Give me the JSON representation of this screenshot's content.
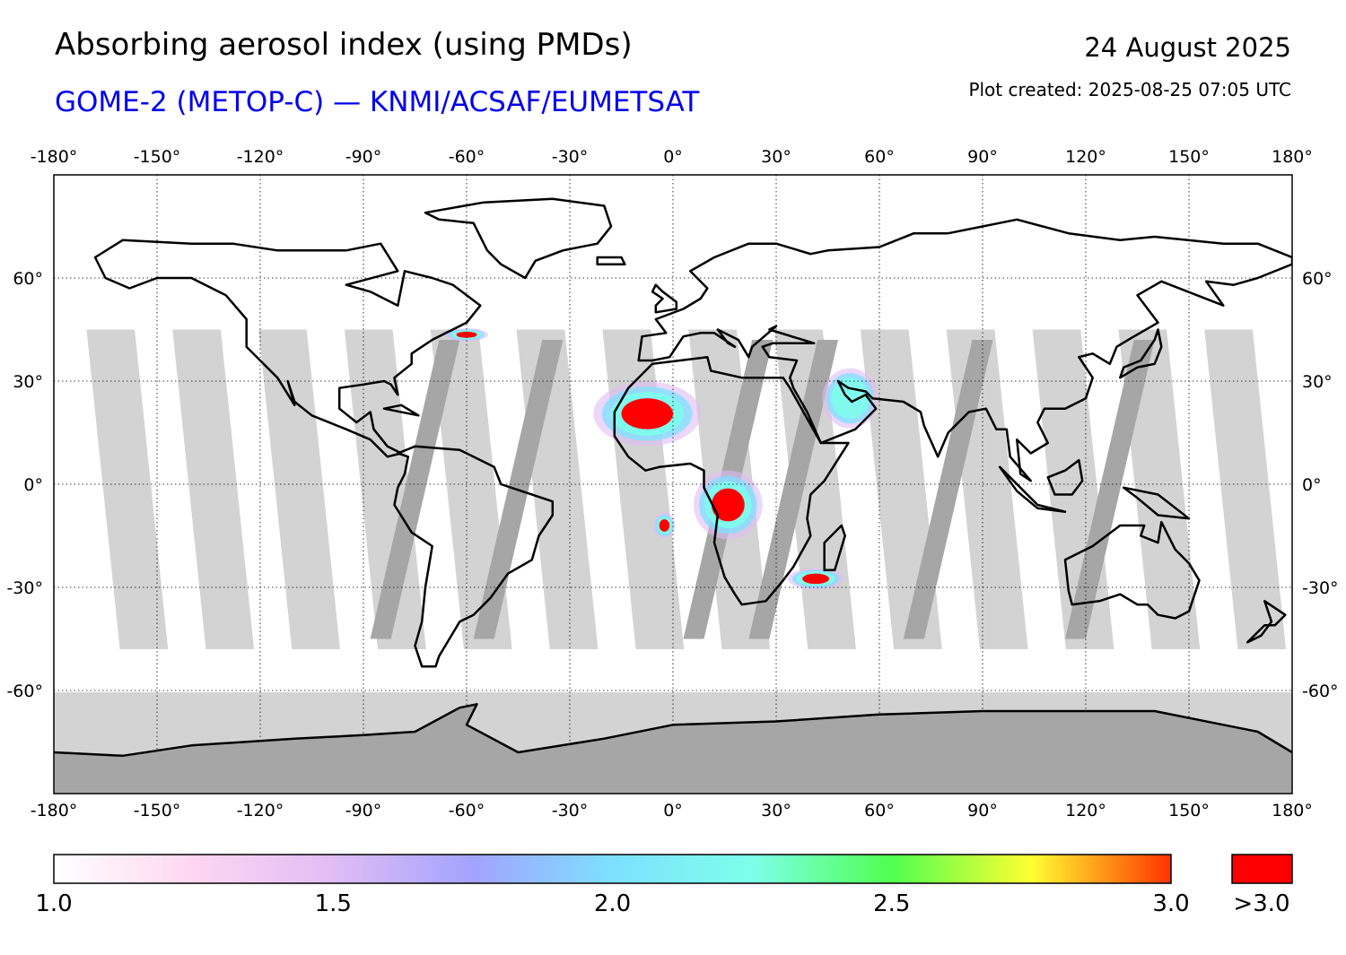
{
  "header": {
    "title": "Absorbing aerosol index (using PMDs)",
    "subtitle": "GOME-2 (METOP-C) — KNMI/ACSAF/EUMETSAT",
    "subtitle_color": "#0000ee",
    "date": "24 August 2025",
    "created": "Plot created: 2025-08-25 07:05 UTC"
  },
  "map": {
    "projection": "equirectangular",
    "lon_range": [
      -180,
      180
    ],
    "lat_range": [
      -90,
      90
    ],
    "lon_ticks": [
      -180,
      -150,
      -120,
      -90,
      -60,
      -30,
      0,
      30,
      60,
      90,
      120,
      150,
      180
    ],
    "lat_ticks": [
      60,
      30,
      0,
      -30,
      -60
    ],
    "lon_tick_labels": [
      "-180°",
      "-150°",
      "-120°",
      "-90°",
      "-60°",
      "-30°",
      "0°",
      "30°",
      "60°",
      "90°",
      "120°",
      "150°",
      "180°"
    ],
    "lat_tick_labels": [
      "60°",
      "30°",
      "0°",
      "-30°",
      "-60°"
    ],
    "grid": "dotted",
    "no_data_color": "#d3d3d3",
    "orbit_gap_color": "#a6a6a6",
    "polar_no_data_lat": -60,
    "orbit_gap_centers_at_equator": [
      -159,
      -134,
      -109,
      -84,
      -59,
      -34,
      -9,
      16,
      41,
      66,
      91,
      116,
      141,
      166
    ],
    "aerosol_plumes": [
      {
        "name": "Southern Africa biomass burning",
        "lon_range": [
          8,
          24
        ],
        "lat_range": [
          -14,
          2
        ],
        "peak_index": 3.0
      },
      {
        "name": "Angola coastal outflow",
        "lon_range": [
          -5,
          0
        ],
        "lat_range": [
          -15,
          -9
        ],
        "peak_index": 3.0
      },
      {
        "name": "Sahara dust",
        "lon_range": [
          -20,
          5
        ],
        "lat_range": [
          13,
          28
        ],
        "peak_index": 3.0
      },
      {
        "name": "Arabian dust",
        "lon_range": [
          45,
          58
        ],
        "lat_range": [
          18,
          32
        ],
        "peak_index": 2.2
      },
      {
        "name": "Madagascar channel",
        "lon_range": [
          35,
          48
        ],
        "lat_range": [
          -30,
          -25
        ],
        "peak_index": 3.0
      },
      {
        "name": "Canada smoke",
        "lon_range": [
          -65,
          -55
        ],
        "lat_range": [
          42,
          45
        ],
        "peak_index": 3.0
      }
    ]
  },
  "colorbar": {
    "min": 1.0,
    "max": 3.0,
    "tick_values": [
      1.0,
      1.5,
      2.0,
      2.5,
      3.0
    ],
    "tick_labels": [
      "1.0",
      "1.5",
      "2.0",
      "2.5",
      "3.0"
    ],
    "overflow_label": ">3.0",
    "overflow_color": "#ff0000",
    "stops": [
      "#ffffff",
      "#ffd6f0",
      "#e0bdf5",
      "#a3a3ff",
      "#7de0ff",
      "#7dffea",
      "#50ff50",
      "#ffff33",
      "#ff3300"
    ]
  }
}
